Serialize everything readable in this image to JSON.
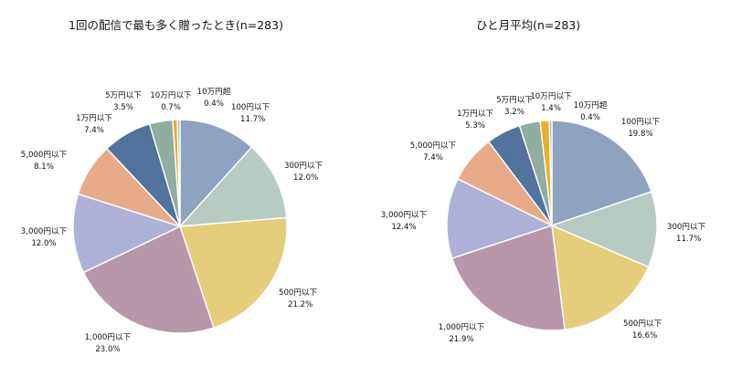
{
  "chart_data": [
    {
      "type": "pie",
      "title": "1回の配信で最も多く贈ったとき(n=283)",
      "slices": [
        {
          "label": "100円以下",
          "value": 11.7,
          "value_text": "11.7%",
          "color": "#8ea3c0"
        },
        {
          "label": "300円以下",
          "value": 12.0,
          "value_text": "12.0%",
          "color": "#b7cbc3"
        },
        {
          "label": "500円以下",
          "value": 21.2,
          "value_text": "21.2%",
          "color": "#e6cd7c"
        },
        {
          "label": "1,000円以下",
          "value": 23.0,
          "value_text": "23.0%",
          "color": "#b897aa"
        },
        {
          "label": "3,000円以下",
          "value": 12.0,
          "value_text": "12.0%",
          "color": "#aeb2d8"
        },
        {
          "label": "5,000円以下",
          "value": 8.1,
          "value_text": "8.1%",
          "color": "#e7ab8a"
        },
        {
          "label": "1万円以下",
          "value": 7.4,
          "value_text": "7.4%",
          "color": "#52739c"
        },
        {
          "label": "5万円以下",
          "value": 3.5,
          "value_text": "3.5%",
          "color": "#8fae9f"
        },
        {
          "label": "10万円以下",
          "value": 0.7,
          "value_text": "0.7%",
          "color": "#e8b02e"
        },
        {
          "label": "10万円超",
          "value": 0.4,
          "value_text": "0.4%",
          "color": "#b6b6b6"
        }
      ]
    },
    {
      "type": "pie",
      "title": "ひと月平均(n=283)",
      "slices": [
        {
          "label": "100円以下",
          "value": 19.8,
          "value_text": "19.8%",
          "color": "#8ea3c0"
        },
        {
          "label": "300円以下",
          "value": 11.7,
          "value_text": "11.7%",
          "color": "#b7cbc3"
        },
        {
          "label": "500円以下",
          "value": 16.6,
          "value_text": "16.6%",
          "color": "#e6cd7c"
        },
        {
          "label": "1,000円以下",
          "value": 21.9,
          "value_text": "21.9%",
          "color": "#b897aa"
        },
        {
          "label": "3,000円以下",
          "value": 12.4,
          "value_text": "12.4%",
          "color": "#aeb2d8"
        },
        {
          "label": "5,000円以下",
          "value": 7.4,
          "value_text": "7.4%",
          "color": "#e7ab8a"
        },
        {
          "label": "1万円以下",
          "value": 5.3,
          "value_text": "5.3%",
          "color": "#52739c"
        },
        {
          "label": "5万円以下",
          "value": 3.2,
          "value_text": "3.2%",
          "color": "#8fae9f"
        },
        {
          "label": "10万円以下",
          "value": 1.4,
          "value_text": "1.4%",
          "color": "#e8b02e"
        },
        {
          "label": "10万円超",
          "value": 0.4,
          "value_text": "0.4%",
          "color": "#b6b6b6"
        }
      ]
    }
  ]
}
